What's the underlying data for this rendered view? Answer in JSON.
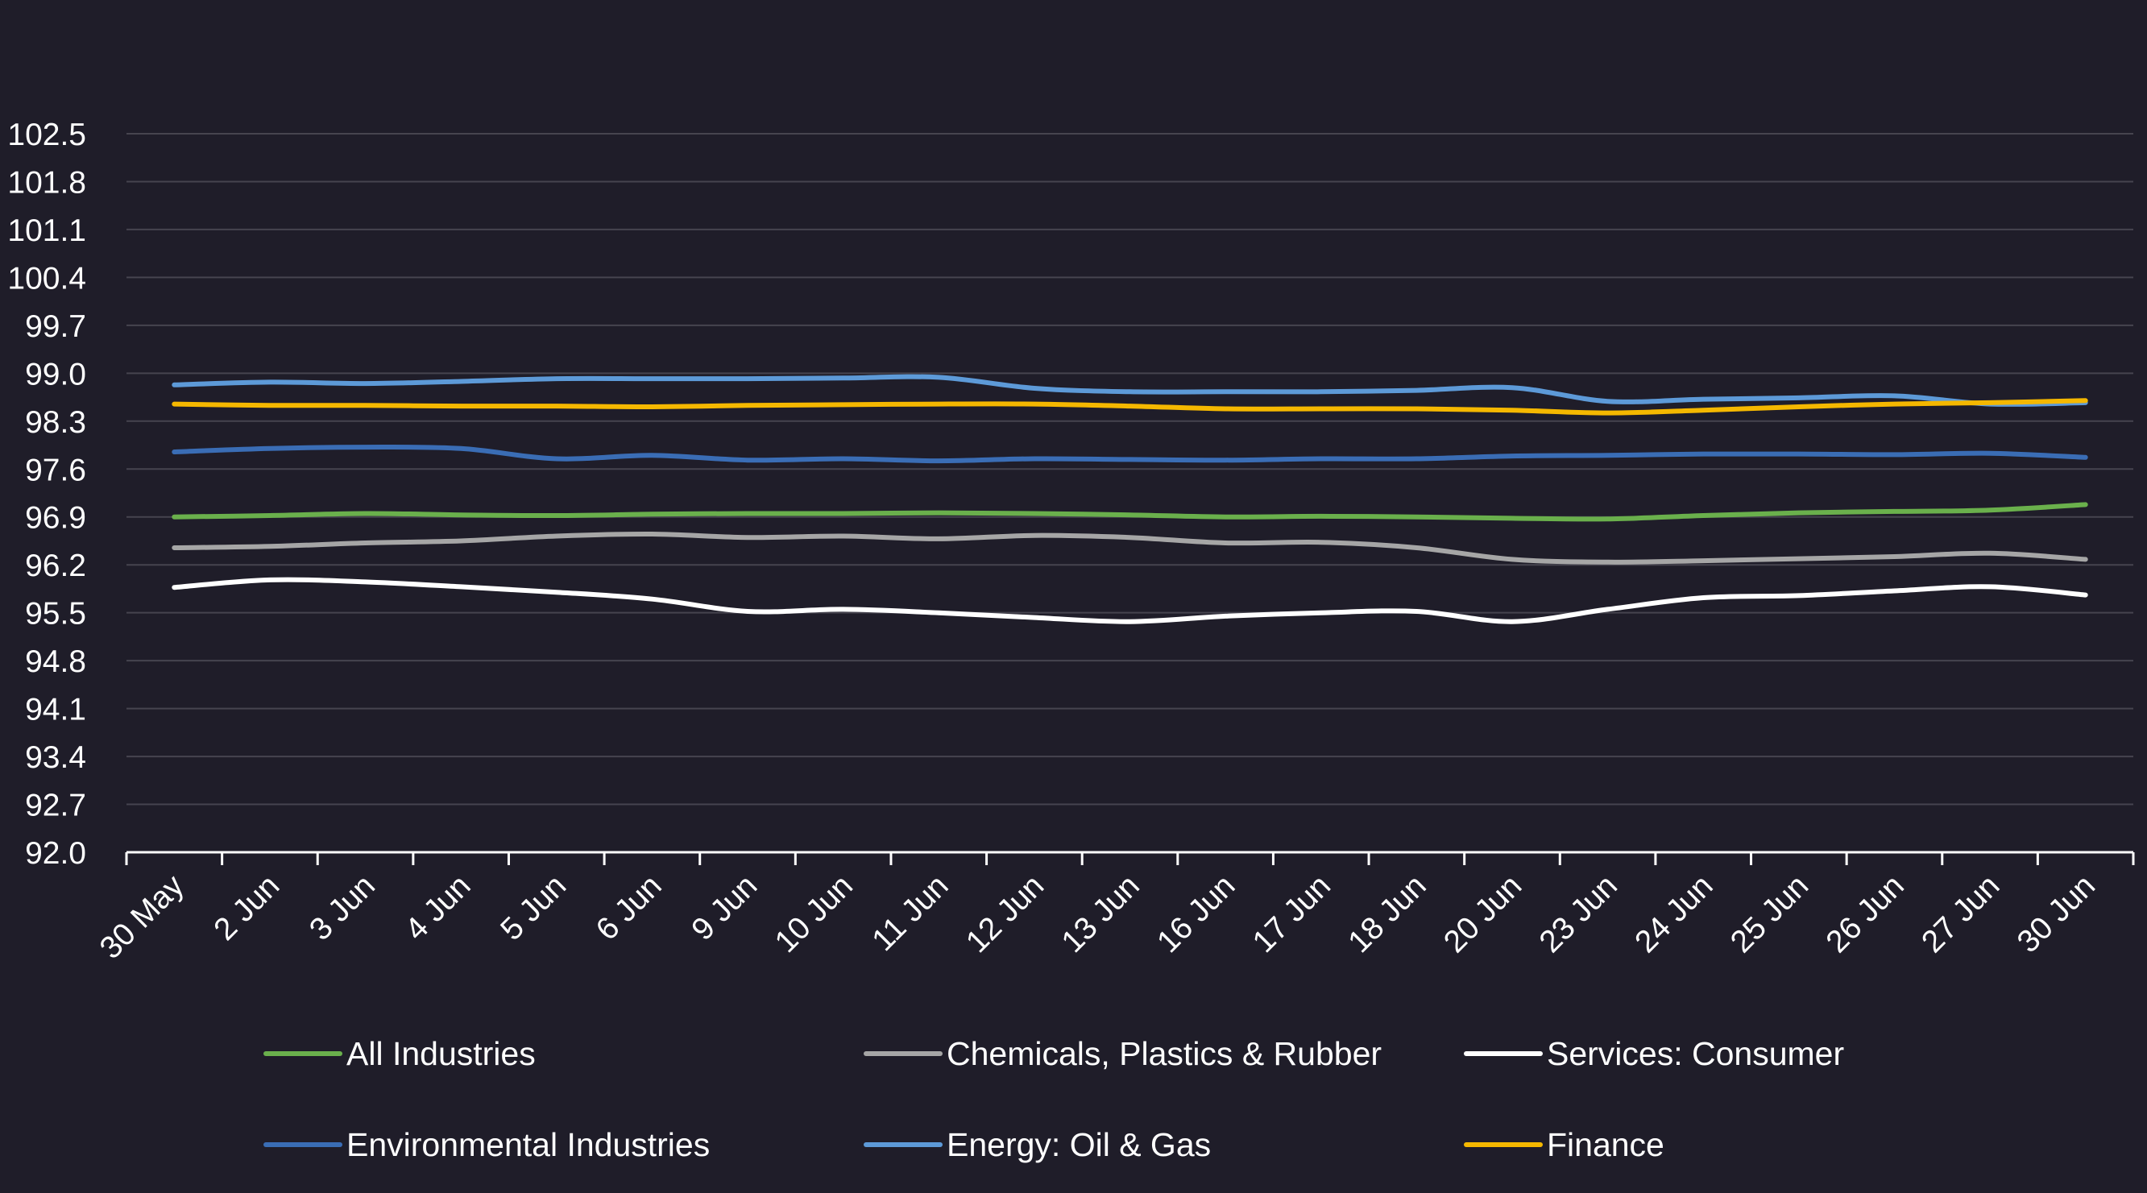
{
  "chart_data": {
    "type": "line",
    "title": "",
    "xlabel": "",
    "ylabel": "",
    "ylim": [
      92.0,
      102.5
    ],
    "yticks": [
      "102.5",
      "101.8",
      "101.1",
      "100.4",
      "99.7",
      "99.0",
      "98.3",
      "97.6",
      "96.9",
      "96.2",
      "95.5",
      "94.8",
      "94.1",
      "93.4",
      "92.7",
      "92.0"
    ],
    "categories": [
      "30 May",
      "2 Jun",
      "3 Jun",
      "4 Jun",
      "5 Jun",
      "6 Jun",
      "9 Jun",
      "10 Jun",
      "11 Jun",
      "12 Jun",
      "13 Jun",
      "16 Jun",
      "17 Jun",
      "18 Jun",
      "20 Jun",
      "23 Jun",
      "24 Jun",
      "25 Jun",
      "26 Jun",
      "27 Jun",
      "30 Jun"
    ],
    "grid": true,
    "legend_position": "bottom",
    "background": "#1f1d29",
    "series": [
      {
        "name": "All Industries",
        "color": "#6ab04c",
        "values": [
          96.9,
          96.92,
          96.95,
          96.93,
          96.92,
          96.94,
          96.95,
          96.95,
          96.96,
          96.95,
          96.93,
          96.9,
          96.91,
          96.9,
          96.88,
          96.87,
          96.92,
          96.96,
          96.98,
          97.0,
          97.08
        ]
      },
      {
        "name": "Chemicals, Plastics & Rubber",
        "color": "#a6a6a6",
        "values": [
          96.45,
          96.47,
          96.52,
          96.55,
          96.62,
          96.65,
          96.6,
          96.62,
          96.58,
          96.63,
          96.6,
          96.52,
          96.53,
          96.45,
          96.28,
          96.24,
          96.26,
          96.29,
          96.32,
          96.37,
          96.28
        ]
      },
      {
        "name": "Services: Consumer",
        "color": "#ffffff",
        "values": [
          95.87,
          95.98,
          95.95,
          95.88,
          95.8,
          95.7,
          95.52,
          95.55,
          95.5,
          95.43,
          95.37,
          95.45,
          95.5,
          95.52,
          95.37,
          95.55,
          95.72,
          95.75,
          95.82,
          95.88,
          95.76
        ]
      },
      {
        "name": "Environmental Industries",
        "color": "#3a6db5",
        "values": [
          97.85,
          97.9,
          97.92,
          97.9,
          97.75,
          97.8,
          97.73,
          97.75,
          97.72,
          97.75,
          97.74,
          97.73,
          97.75,
          97.75,
          97.79,
          97.8,
          97.82,
          97.82,
          97.81,
          97.83,
          97.77
        ]
      },
      {
        "name": "Energy: Oil & Gas",
        "color": "#5d9ad8",
        "values": [
          98.83,
          98.87,
          98.85,
          98.88,
          98.92,
          98.92,
          98.92,
          98.93,
          98.94,
          98.78,
          98.73,
          98.73,
          98.73,
          98.75,
          98.79,
          98.59,
          98.62,
          98.64,
          98.67,
          98.55,
          98.57
        ]
      },
      {
        "name": "Finance",
        "color": "#f5b800",
        "values": [
          98.55,
          98.53,
          98.53,
          98.52,
          98.52,
          98.51,
          98.53,
          98.54,
          98.55,
          98.55,
          98.52,
          98.48,
          98.48,
          98.48,
          98.46,
          98.42,
          98.46,
          98.51,
          98.55,
          98.57,
          98.6
        ]
      }
    ]
  }
}
